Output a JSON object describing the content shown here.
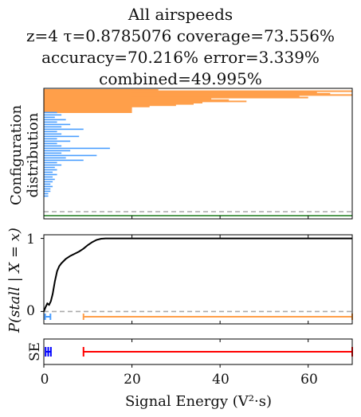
{
  "title": {
    "line1": "All airspeeds",
    "line2": "z=4 τ=0.8785076 coverage=73.556%",
    "line3": "accuracy=70.216% error=3.339%",
    "line4": "combined=49.995%"
  },
  "colors": {
    "orange": "#ff9f4a",
    "blue": "#4a9eff",
    "black": "#000000",
    "green": "#1a7a1a",
    "gray_dashed": "#aaaaaa",
    "red": "#ff0000",
    "navy": "#0000ff"
  },
  "chart_data": [
    {
      "type": "bar",
      "name": "configuration-distribution",
      "ylabel": "Configuration\ndistribution",
      "orientation": "horizontal",
      "xlim": [
        0,
        70
      ],
      "orange_bars": [
        26,
        70,
        62,
        65,
        70,
        58,
        60,
        38,
        42,
        46,
        36,
        34,
        30,
        24,
        20,
        18
      ],
      "blue_bars": [
        3,
        4,
        2.5,
        5,
        3,
        6,
        4,
        9,
        3,
        4,
        8,
        3,
        6,
        3,
        4,
        15,
        6,
        4,
        12,
        5,
        9,
        3,
        4,
        2.5,
        3,
        2,
        3,
        2,
        2.5,
        2,
        1.5,
        2,
        1.5,
        1.5,
        1,
        1
      ],
      "reference_lines": {
        "dashed": "gray",
        "solid": "green"
      }
    },
    {
      "type": "line",
      "name": "stall-probability",
      "ylabel": "P(stall | X = x)",
      "xlim": [
        0,
        70
      ],
      "ylim": [
        -0.17,
        1.05
      ],
      "yticks": [
        "0",
        "1"
      ],
      "x": [
        0.0,
        0.4,
        0.8,
        1.2,
        1.6,
        2.0,
        2.5,
        3.0,
        3.5,
        4.0,
        4.5,
        5.0,
        6.0,
        7.0,
        8.0,
        9.0,
        10.0,
        11.0,
        12.0,
        13.0,
        14.0,
        15.0,
        20.0,
        30.0,
        40.0,
        50.0,
        60.0,
        70.0
      ],
      "y": [
        0.0,
        0.06,
        0.11,
        0.09,
        0.14,
        0.24,
        0.41,
        0.55,
        0.62,
        0.66,
        0.69,
        0.72,
        0.76,
        0.79,
        0.82,
        0.86,
        0.91,
        0.95,
        0.98,
        0.995,
        1.0,
        1.0,
        1.0,
        1.0,
        1.0,
        1.0,
        1.0,
        1.0
      ],
      "intervals": [
        {
          "series": "blue",
          "start": 0.3,
          "end": 1.5
        },
        {
          "series": "orange",
          "start": 9.0,
          "end": 70.0
        }
      ]
    },
    {
      "type": "line",
      "name": "signal-energy-intervals",
      "ylabel": "SE",
      "xlabel": "Signal Energy (V²·s)",
      "xlim": [
        0,
        70
      ],
      "xticks": [
        "0",
        "20",
        "40",
        "60"
      ],
      "intervals": [
        {
          "series": "navy",
          "start": 0.4,
          "end": 1.6
        },
        {
          "series": "red",
          "start": 9.0,
          "end": 70.0
        }
      ]
    }
  ]
}
